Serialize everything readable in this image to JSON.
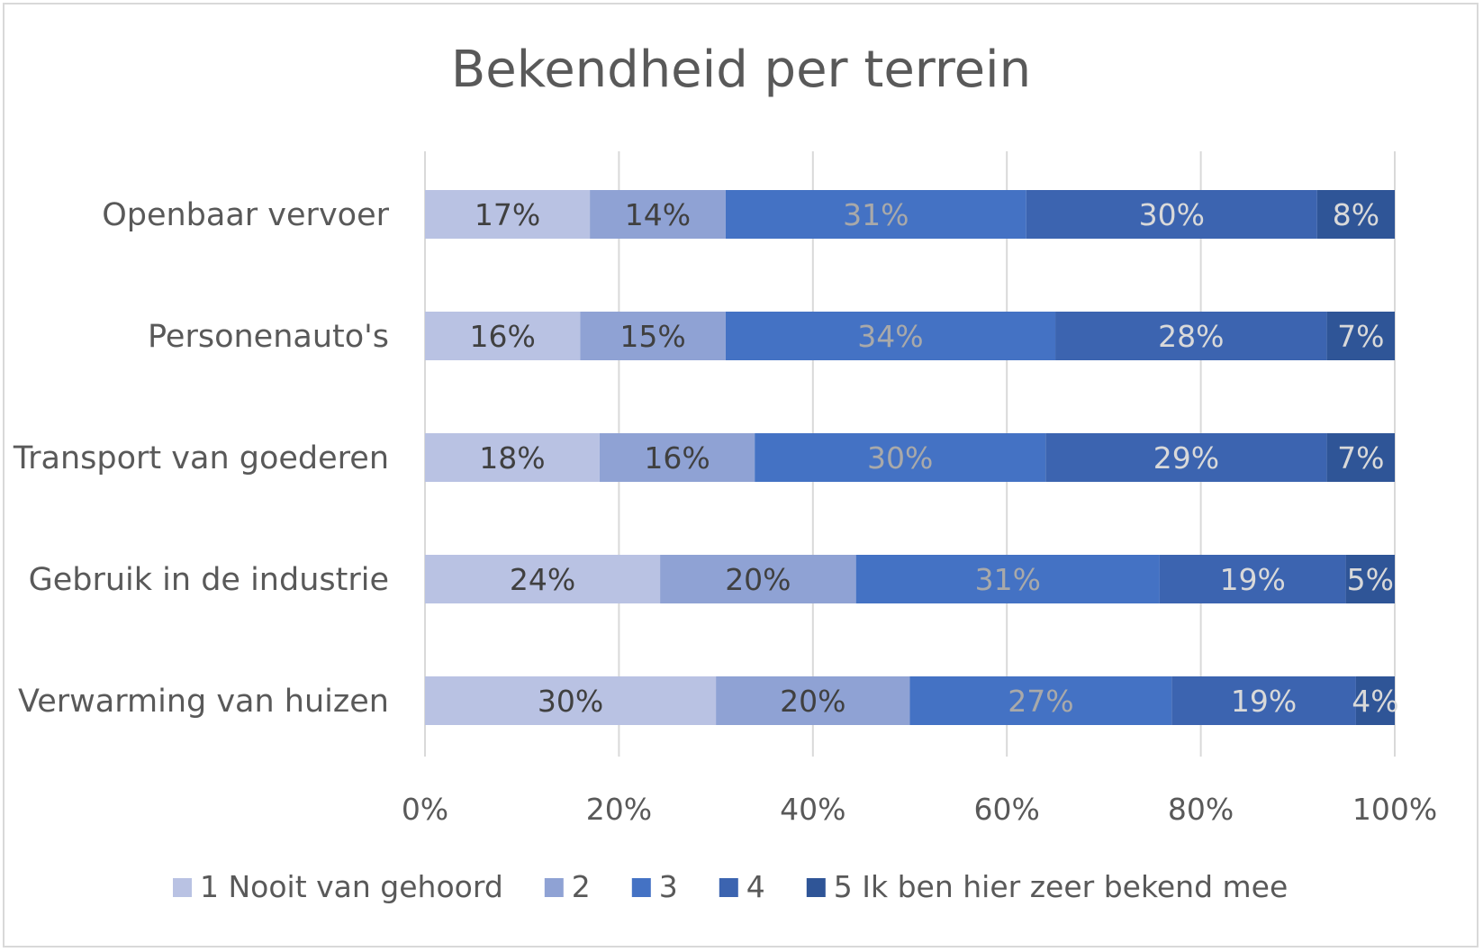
{
  "chart_data": {
    "type": "bar",
    "orientation": "horizontal",
    "stacked": "percent",
    "title": "Bekendheid per terrein",
    "xlabel": "",
    "ylabel": "",
    "xlim": [
      0,
      100
    ],
    "x_ticks": [
      "0%",
      "20%",
      "40%",
      "60%",
      "80%",
      "100%"
    ],
    "grid": true,
    "legend_position": "bottom",
    "categories": [
      "Openbaar vervoer",
      "Personenauto's",
      "Transport van goederen",
      "Gebruik in de industrie",
      "Verwarming van huizen"
    ],
    "series": [
      {
        "name": "1 Nooit van gehoord",
        "color": "#b9c2e3",
        "label_color": "#404040",
        "values": [
          17,
          16,
          18,
          24,
          30
        ],
        "labels": [
          "17%",
          "16%",
          "18%",
          "24%",
          "30%"
        ]
      },
      {
        "name": "2",
        "color": "#8fa2d4",
        "label_color": "#404040",
        "values": [
          14,
          15,
          16,
          20,
          20
        ],
        "labels": [
          "14%",
          "15%",
          "16%",
          "20%",
          "20%"
        ]
      },
      {
        "name": "3",
        "color": "#4472c4",
        "label_color": "#a9a9a9",
        "values": [
          31,
          34,
          30,
          31,
          27
        ],
        "labels": [
          "31%",
          "34%",
          "30%",
          "31%",
          "27%"
        ]
      },
      {
        "name": "4",
        "color": "#3c64b0",
        "label_color": "#d9d9d9",
        "values": [
          30,
          28,
          29,
          19,
          19
        ],
        "labels": [
          "30%",
          "28%",
          "29%",
          "19%",
          "19%"
        ]
      },
      {
        "name": "5 Ik ben hier zeer bekend mee",
        "color": "#2f5597",
        "label_color": "#d9d9d9",
        "values": [
          8,
          7,
          7,
          5,
          4
        ],
        "labels": [
          "8%",
          "7%",
          "7%",
          "5%",
          "4%"
        ]
      }
    ]
  }
}
